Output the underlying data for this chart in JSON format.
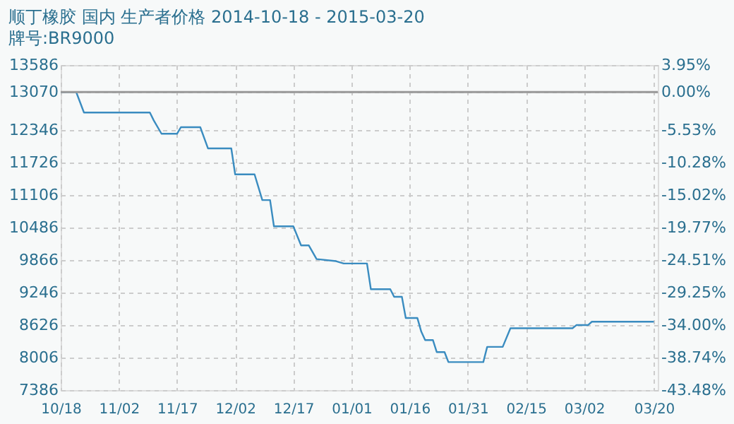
{
  "chart_data": {
    "type": "line",
    "title": "顺丁橡胶 国内 生产者价格 2014-10-18 - 2015-03-20",
    "subtitle": "牌号:BR9000",
    "x": [
      "2014-10-18",
      "2014-10-22",
      "2014-10-24",
      "2014-11-10",
      "2014-11-11",
      "2014-11-13",
      "2014-11-17",
      "2014-11-18",
      "2014-11-23",
      "2014-11-25",
      "2014-12-01",
      "2014-12-02",
      "2014-12-07",
      "2014-12-09",
      "2014-12-11",
      "2014-12-12",
      "2014-12-17",
      "2014-12-19",
      "2014-12-21",
      "2014-12-23",
      "2014-12-28",
      "2014-12-30",
      "2015-01-05",
      "2015-01-06",
      "2015-01-11",
      "2015-01-12",
      "2015-01-14",
      "2015-01-15",
      "2015-01-18",
      "2015-01-19",
      "2015-01-20",
      "2015-01-22",
      "2015-01-23",
      "2015-01-25",
      "2015-01-26",
      "2015-02-04",
      "2015-02-05",
      "2015-02-09",
      "2015-02-11",
      "2015-02-27",
      "2015-02-28",
      "2015-03-03",
      "2015-03-04",
      "2015-03-20"
    ],
    "series": [
      {
        "color": "#3a8cc0",
        "values": [
          13070,
          13070,
          12680,
          12680,
          12530,
          12275,
          12275,
          12400,
          12400,
          11995,
          11995,
          11500,
          11500,
          11010,
          11010,
          10510,
          10510,
          10145,
          10145,
          9885,
          9845,
          9800,
          9800,
          9310,
          9310,
          9165,
          9165,
          8760,
          8760,
          8500,
          8340,
          8340,
          8110,
          8110,
          7920,
          7920,
          8210,
          8210,
          8565,
          8565,
          8625,
          8625,
          8690,
          8690
        ]
      }
    ],
    "xlim": [
      "2014-10-18",
      "2015-03-21"
    ],
    "xticks": [
      {
        "value": "2014-10-18",
        "label": "10/18"
      },
      {
        "value": "2014-11-02",
        "label": "11/02"
      },
      {
        "value": "2014-11-17",
        "label": "11/17"
      },
      {
        "value": "2014-12-02",
        "label": "12/02"
      },
      {
        "value": "2014-12-17",
        "label": "12/17"
      },
      {
        "value": "2015-01-01",
        "label": "01/01"
      },
      {
        "value": "2015-01-16",
        "label": "01/16"
      },
      {
        "value": "2015-01-31",
        "label": "01/31"
      },
      {
        "value": "2015-02-15",
        "label": "02/15"
      },
      {
        "value": "2015-03-02",
        "label": "03/02"
      },
      {
        "value": "2015-03-20",
        "label": "03/20"
      }
    ],
    "ylim": [
      7386,
      13586
    ],
    "yticks": [
      7386,
      8006,
      8626,
      9246,
      9866,
      10486,
      11106,
      11726,
      12346,
      13070,
      13586
    ],
    "y2lim": [
      -43.48,
      3.95
    ],
    "y2ticks": [
      {
        "value": -43.48,
        "label": "-43.48%"
      },
      {
        "value": -38.74,
        "label": "-38.74%"
      },
      {
        "value": -34.0,
        "label": "-34.00%"
      },
      {
        "value": -29.25,
        "label": "-29.25%"
      },
      {
        "value": -24.51,
        "label": "-24.51%"
      },
      {
        "value": -19.77,
        "label": "-19.77%"
      },
      {
        "value": -15.02,
        "label": "-15.02%"
      },
      {
        "value": -10.28,
        "label": "-10.28%"
      },
      {
        "value": -5.53,
        "label": "-5.53%"
      },
      {
        "value": 0,
        "label": "0.00%"
      },
      {
        "value": 3.95,
        "label": "3.95%"
      }
    ],
    "ref_lines": [
      {
        "axis": "y2",
        "value": 0,
        "color": "#999999",
        "line_style": "solid"
      }
    ],
    "grid": true,
    "marker": "none",
    "line_style": "solid"
  }
}
